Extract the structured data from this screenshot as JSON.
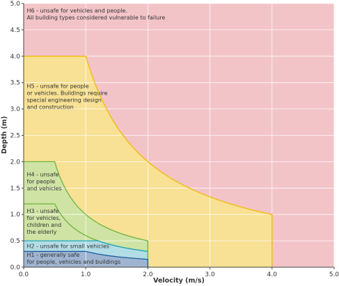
{
  "chart_data": {
    "type": "area",
    "xlabel": "Velocity (m/s)",
    "ylabel": "Depth (m)",
    "xlim": [
      0,
      5
    ],
    "ylim": [
      0,
      5
    ],
    "x_ticks": [
      "0.0",
      "1.0",
      "2.0",
      "3.0",
      "4.0",
      "5.0"
    ],
    "y_ticks": [
      "0.0",
      "0.5",
      "1.0",
      "1.5",
      "2.0",
      "2.5",
      "3.0",
      "3.5",
      "4.0",
      "4.5",
      "5.0"
    ],
    "grid": true,
    "hazard_zones": [
      {
        "id": "H6",
        "label_lines": [
          "H6 - unsafe for vehicles and people.",
          "All building types considered vulnerable to failure"
        ],
        "label_at": [
          0.05,
          4.83
        ],
        "color": "#f2c4c8",
        "edge_color": "#f2c4c8"
      },
      {
        "id": "H5",
        "label_lines": [
          "H5 - unsafe for people",
          "or vehicles. Buildings require",
          "special engineering design",
          "and construction"
        ],
        "label_at": [
          0.05,
          3.4
        ],
        "color": "#f8e194",
        "edge_color": "#f0c020",
        "boundary": {
          "max_depth": 4.0,
          "depth_velocity_product": 4.0,
          "max_velocity": 4.0,
          "min_depth": 1.0
        }
      },
      {
        "id": "H4",
        "label_lines": [
          "H4 - unsafe",
          "for people",
          "and vehicles"
        ],
        "label_at": [
          0.05,
          1.72
        ],
        "color": "#cfe3a4",
        "edge_color": "#6cb33e",
        "boundary": {
          "max_depth": 2.0,
          "depth_velocity_product": 1.0,
          "max_velocity": 2.0,
          "min_depth": 0.5
        }
      },
      {
        "id": "H3",
        "label_lines": [
          "H3 - unsafe",
          "for vehicles,",
          "children and",
          "the elderly"
        ],
        "label_at": [
          0.05,
          1.03
        ],
        "color": "#cfe3a4",
        "edge_color": "#6cb33e",
        "boundary": {
          "max_depth": 1.2,
          "depth_velocity_product": 0.6,
          "max_velocity": 2.0,
          "min_depth": 0.3
        }
      },
      {
        "id": "H2",
        "label_lines": [
          "H2 - unsafe for small vehicles"
        ],
        "label_at": [
          0.05,
          0.36
        ],
        "color": "#b3dde6",
        "edge_color": "#1fa6bf",
        "boundary": {
          "max_depth": 0.5,
          "depth_velocity_product": 0.6,
          "max_velocity": 2.0
        }
      },
      {
        "id": "H1",
        "label_lines": [
          "H1 - generally safe",
          "for people, vehicles and buildings"
        ],
        "label_at": [
          0.05,
          0.2
        ],
        "color": "#9fb4d0",
        "edge_color": "#1a5fa0",
        "boundary": {
          "max_depth": 0.3,
          "depth_velocity_product": 0.3,
          "max_velocity": 2.0,
          "min_depth": 0.15
        }
      }
    ]
  }
}
